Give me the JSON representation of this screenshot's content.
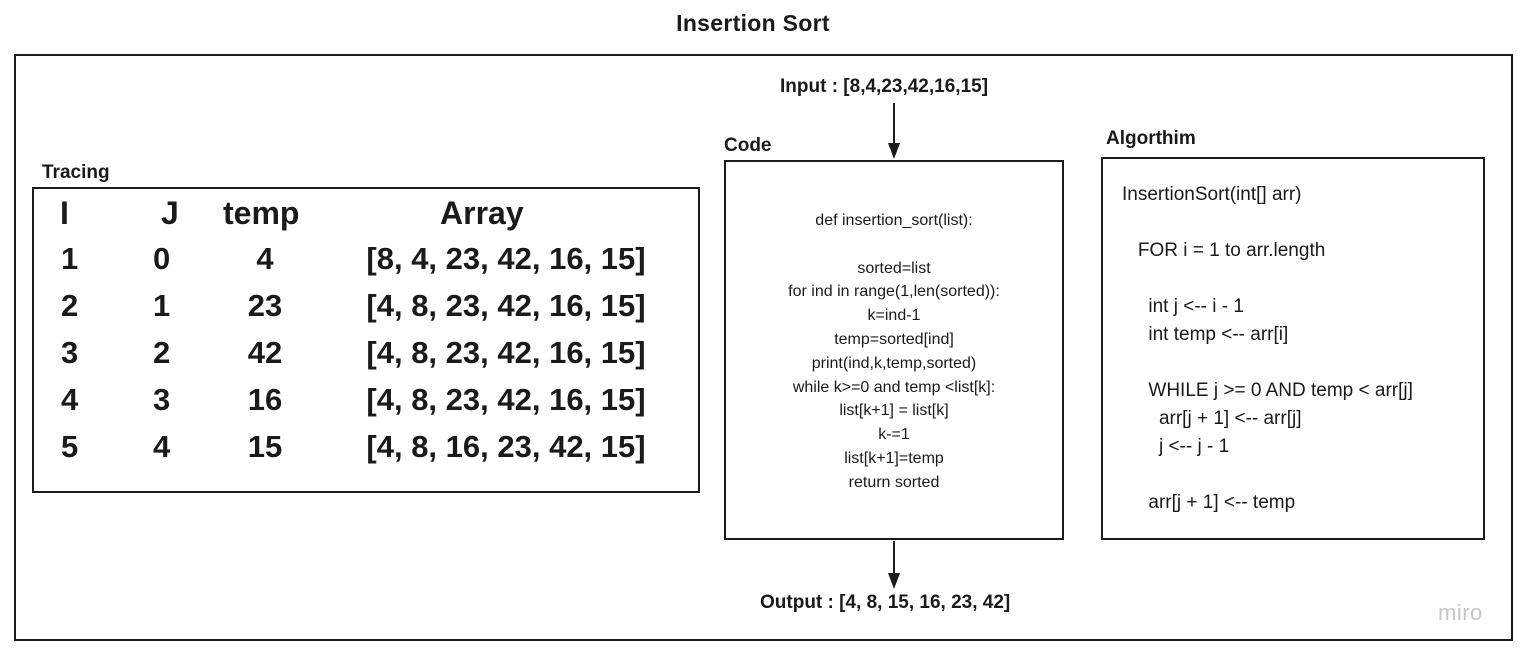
{
  "title": "Insertion Sort",
  "input_label": "Input  : [8,4,23,42,16,15]",
  "output_label": "Output : [4, 8, 15, 16, 23, 42]",
  "tracing": {
    "label": "Tracing",
    "headers": [
      "I",
      "J",
      "temp",
      "Array"
    ],
    "rows": [
      [
        "1",
        "0",
        "4",
        "[8, 4, 23, 42, 16, 15]"
      ],
      [
        "2",
        "1",
        "23",
        "[4, 8, 23, 42, 16, 15]"
      ],
      [
        "3",
        "2",
        "42",
        "[4, 8, 23, 42, 16, 15]"
      ],
      [
        "4",
        "3",
        "16",
        "[4, 8, 23, 42, 16, 15]"
      ],
      [
        "5",
        "4",
        "15",
        "[4, 8, 16, 23, 42, 15]"
      ]
    ]
  },
  "code": {
    "label": "Code",
    "lines": [
      "def insertion_sort(list):",
      "",
      "sorted=list",
      "for ind in range(1,len(sorted)):",
      "k=ind-1",
      "temp=sorted[ind]",
      "print(ind,k,temp,sorted)",
      "while k>=0 and temp <list[k]:",
      "list[k+1] = list[k]",
      "k-=1",
      "list[k+1]=temp",
      "return sorted"
    ]
  },
  "algorithm": {
    "label": "Algorthim",
    "lines": [
      "InsertionSort(int[] arr)",
      "",
      "   FOR i = 1 to arr.length",
      "",
      "     int j <-- i - 1",
      "     int temp <-- arr[i]",
      "",
      "     WHILE j >= 0 AND temp < arr[j]",
      "       arr[j + 1] <-- arr[j]",
      "       j <-- j - 1",
      "",
      "     arr[j + 1] <-- temp"
    ]
  },
  "watermark": "miro"
}
